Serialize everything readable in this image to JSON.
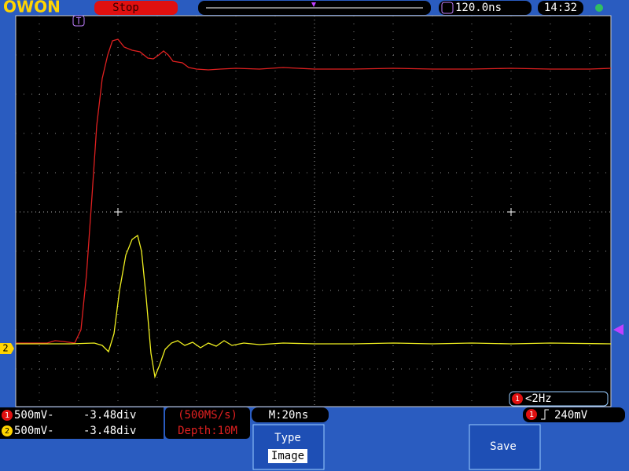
{
  "header": {
    "logo": "OWON",
    "status": "Stop",
    "trigger_position": "120.0ns",
    "clock": "14:32"
  },
  "markers": {
    "trigger": "T",
    "channel": "2"
  },
  "channels": [
    {
      "number": "1",
      "scale": "500mV-",
      "offset": "-3.48div"
    },
    {
      "number": "2",
      "scale": "500mV-",
      "offset": "-3.48div"
    }
  ],
  "acquisition": {
    "sample_rate": "(500MS/s)",
    "depth": "Depth:10M"
  },
  "timebase": "M:20ns",
  "frequency": {
    "source": "1",
    "text": "<2Hz"
  },
  "trigger": {
    "source": "1",
    "level": "240mV"
  },
  "menu": {
    "type_label": "Type",
    "type_value": "Image",
    "save": "Save"
  }
}
